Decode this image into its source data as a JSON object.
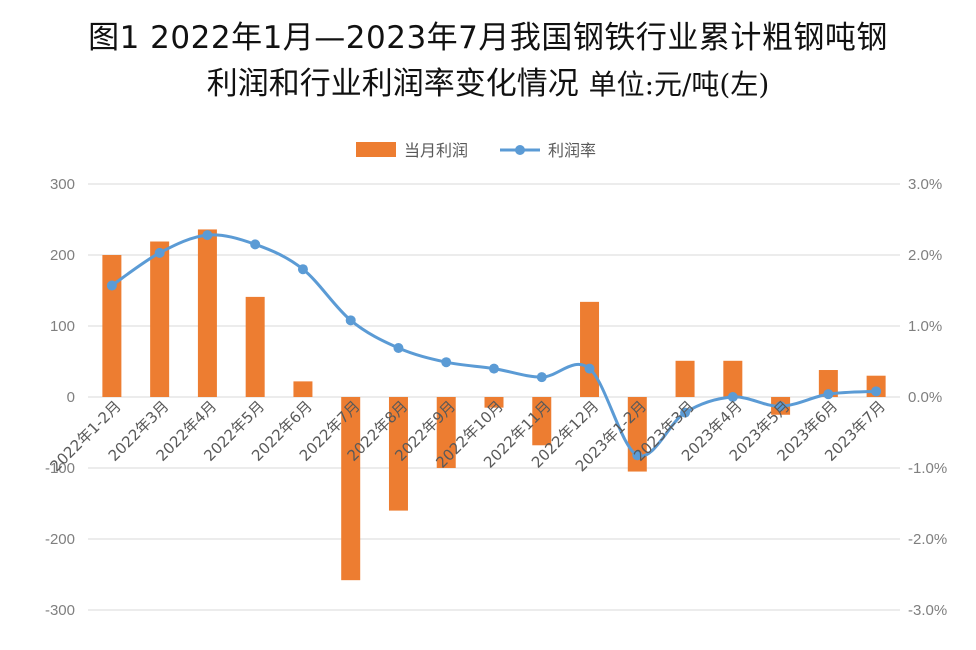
{
  "title_line1": "图1 2022年1月—2023年7月我国钢铁行业累计粗钢吨钢",
  "title_line2": "利润和行业利润率变化情况",
  "title_unit": "单位:元/吨(左)",
  "chart_data": {
    "type": "bar+line",
    "categories": [
      "2022年1-2月",
      "2022年3月",
      "2022年4月",
      "2022年5月",
      "2022年6月",
      "2022年7月",
      "2022年8月",
      "2022年9月",
      "2022年10月",
      "2022年11月",
      "2022年12月",
      "2023年1-2月",
      "2023年3月",
      "2023年4月",
      "2023年5月",
      "2023年6月",
      "2023年7月"
    ],
    "series": [
      {
        "name": "当月利润",
        "type": "bar",
        "axis": "left",
        "color": "#ed7d31",
        "values": [
          200,
          219,
          236,
          141,
          22,
          -258,
          -160,
          -100,
          -15,
          -68,
          134,
          -105,
          51,
          51,
          -25,
          38,
          30
        ]
      },
      {
        "name": "利润率",
        "type": "line",
        "axis": "right",
        "color": "#5b9bd5",
        "values": [
          1.57,
          2.03,
          2.28,
          2.15,
          1.8,
          1.08,
          0.69,
          0.49,
          0.4,
          0.28,
          0.4,
          -0.82,
          -0.22,
          0.0,
          -0.13,
          0.04,
          0.08
        ]
      }
    ],
    "y_left": {
      "min": -300,
      "max": 300,
      "ticks": [
        300,
        200,
        100,
        0,
        -100,
        -200,
        -300
      ],
      "tick_labels": [
        "300",
        "200",
        "100",
        "0",
        "-100",
        "-200",
        "-300"
      ]
    },
    "y_right": {
      "min": -3.0,
      "max": 3.0,
      "ticks": [
        3,
        2,
        1,
        0,
        -1,
        -2,
        -3
      ],
      "tick_labels": [
        "3.0%",
        "2.0%",
        "1.0%",
        "0.0%",
        "-1.0%",
        "-2.0%",
        "-3.0%"
      ]
    },
    "grid": true,
    "legend_position": "top-center"
  }
}
